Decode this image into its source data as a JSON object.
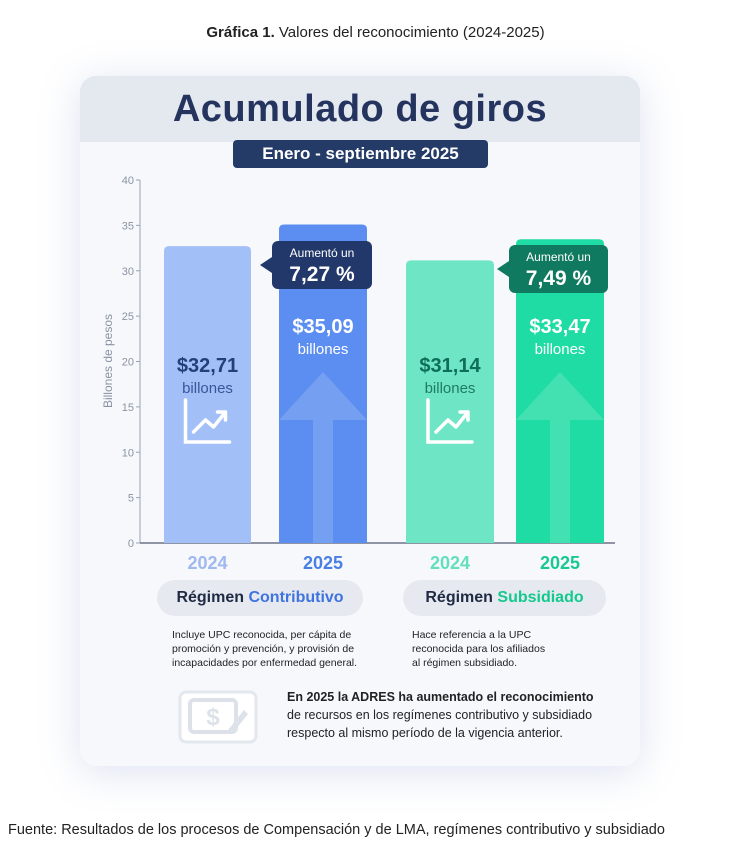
{
  "caption": {
    "label": "Gráfica 1.",
    "text": "Valores del reconocimiento (2024-2025)"
  },
  "infographic": {
    "title": "Acumulado de giros",
    "period": "Enero - septiembre 2025"
  },
  "chart_data": {
    "type": "bar",
    "ylabel": "Billones de pesos",
    "ylim": [
      0,
      40
    ],
    "yticks": [
      0,
      5,
      10,
      15,
      20,
      25,
      30,
      35,
      40
    ],
    "grid": false,
    "bars": [
      {
        "category": "2024",
        "group": "Régimen Contributivo",
        "value": 32.71,
        "label": "$32,71",
        "unit": "billones",
        "color": "#a3bff7"
      },
      {
        "category": "2025",
        "group": "Régimen Contributivo",
        "value": 35.09,
        "label": "$35,09",
        "unit": "billones",
        "color": "#5b8ef0"
      },
      {
        "category": "2024",
        "group": "Régimen Subsidiado",
        "value": 31.14,
        "label": "$31,14",
        "unit": "billones",
        "color": "#6ee6c6"
      },
      {
        "category": "2025",
        "group": "Régimen Subsidiado",
        "value": 33.47,
        "label": "$33,47",
        "unit": "billones",
        "color": "#1fdca4"
      }
    ],
    "annotations": [
      {
        "text": "Aumentó un",
        "value": "7,27 %",
        "color": "#22386a"
      },
      {
        "text": "Aumentó un",
        "value": "7,49 %",
        "color": "#0f7a5f"
      }
    ],
    "category_colors": [
      "#9fb9f0",
      "#4a7fe3",
      "#63dfbd",
      "#18c98f"
    ]
  },
  "regimes": [
    {
      "name": "Régimen",
      "highlight": "Contributivo",
      "description": "Incluye UPC reconocida, per cápita de promoción y prevención, y provisión de incapacidades por enfermedad general."
    },
    {
      "name": "Régimen",
      "highlight": "Subsidiado",
      "description": "Hace referencia a la UPC reconocida para los afiliados al régimen subsidiado."
    }
  ],
  "note": {
    "bold": "En 2025 la ADRES ha aumentado el reconocimiento",
    "rest": "de recursos en los regímenes contributivo y subsidiado respecto al mismo período de la vigencia anterior."
  },
  "icons": {
    "bar_icon": "trend-up-icon",
    "note_icon": "money-edit-icon"
  },
  "source": "Fuente: Resultados de los procesos de Compensación y de LMA, regímenes contributivo y subsidiado"
}
